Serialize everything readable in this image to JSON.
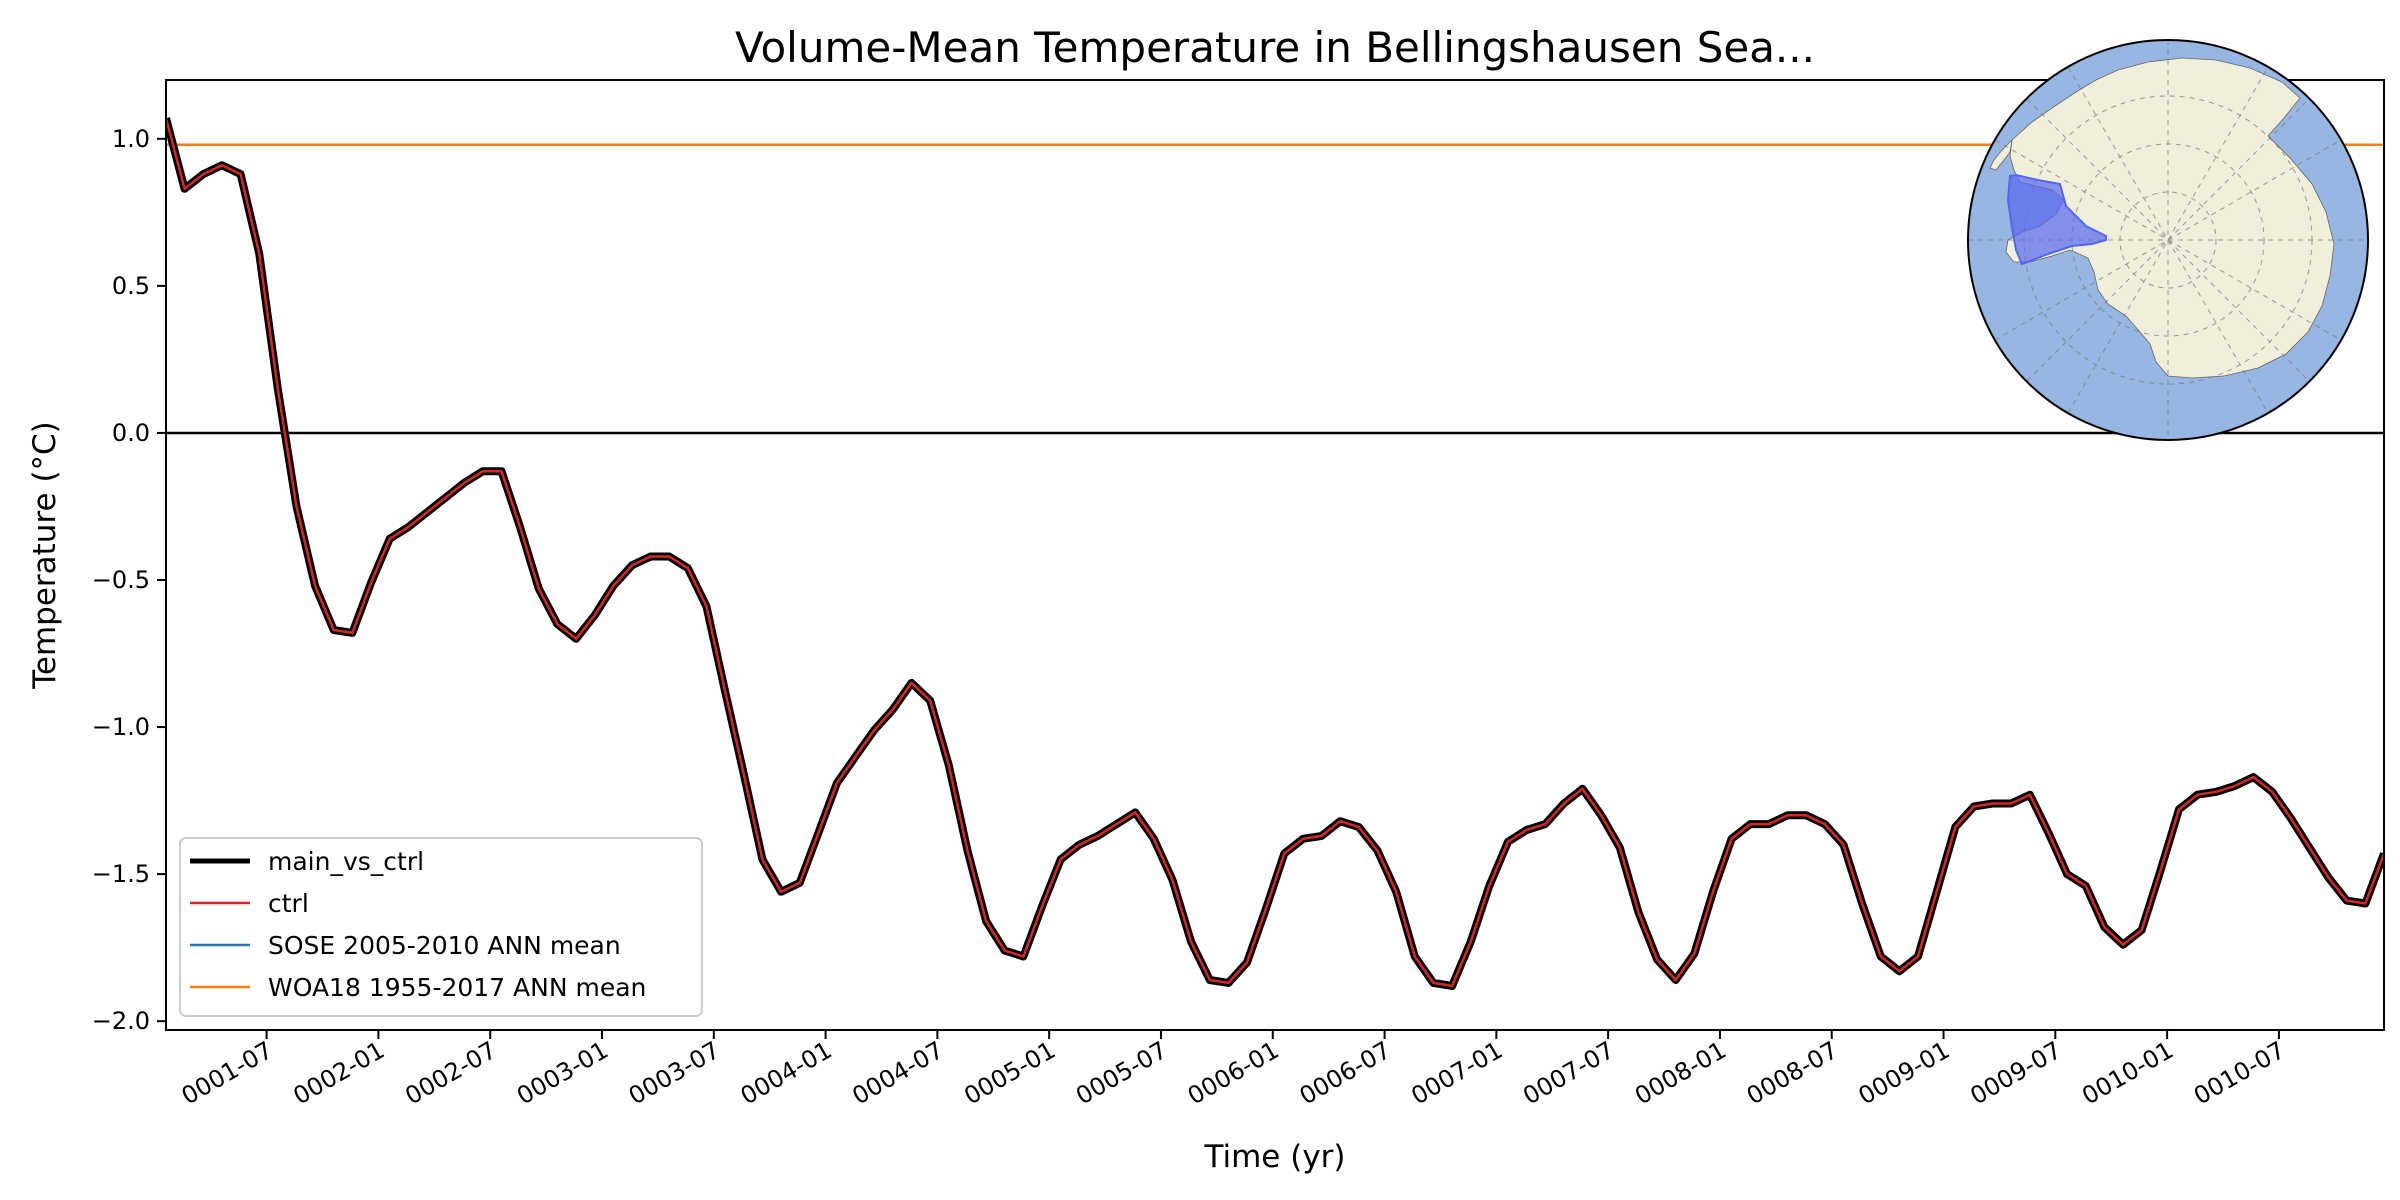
{
  "chart_data": {
    "type": "line",
    "title": "Volume-Mean Temperature in Bellingshausen Sea...",
    "xlabel": "Time (yr)",
    "ylabel": "Temperature (°C)",
    "ylim": [
      -2.03,
      1.2
    ],
    "xlim": [
      0.0,
      9.92
    ],
    "x_ticks": [
      "0001-07",
      "0002-01",
      "0002-07",
      "0003-01",
      "0003-07",
      "0004-01",
      "0004-07",
      "0005-01",
      "0005-07",
      "0006-01",
      "0006-07",
      "0007-01",
      "0007-07",
      "0008-01",
      "0008-07",
      "0009-01",
      "0009-07",
      "0010-01",
      "0010-07"
    ],
    "x_tick_values": [
      0.45,
      0.95,
      1.45,
      1.95,
      2.45,
      2.95,
      3.45,
      3.95,
      4.45,
      4.95,
      5.45,
      5.95,
      6.45,
      6.95,
      7.45,
      7.95,
      8.45,
      8.95,
      9.45
    ],
    "y_ticks": [
      "−2.0",
      "−1.5",
      "−1.0",
      "−0.5",
      "0.0",
      "0.5",
      "1.0"
    ],
    "y_tick_values": [
      -2.0,
      -1.5,
      -1.0,
      -0.5,
      0.0,
      0.5,
      1.0
    ],
    "zero_line": 0.0,
    "legend_position": "lower left",
    "inset": "south polar stereographic map of Antarctica with Bellingshausen Sea region highlighted",
    "colors": {
      "main": "#000000",
      "ctrl": "#d62728",
      "sose": "#1f77b4",
      "woa": "#ff7f0e",
      "ocean": "#97b6e1",
      "land": "#efefdb",
      "region": "#5566ee"
    },
    "series": [
      {
        "name": "main_vs_ctrl",
        "values": [
          1.07,
          0.83,
          0.88,
          0.91,
          0.88,
          0.61,
          0.15,
          -0.25,
          -0.52,
          -0.67,
          -0.68,
          -0.51,
          -0.36,
          -0.32,
          -0.27,
          -0.22,
          -0.17,
          -0.13,
          -0.13,
          -0.32,
          -0.53,
          -0.65,
          -0.7,
          -0.62,
          -0.52,
          -0.45,
          -0.42,
          -0.42,
          -0.46,
          -0.59,
          -0.88,
          -1.16,
          -1.45,
          -1.56,
          -1.53,
          -1.36,
          -1.19,
          -1.1,
          -1.01,
          -0.94,
          -0.85,
          -0.91,
          -1.13,
          -1.42,
          -1.66,
          -1.76,
          -1.78,
          -1.61,
          -1.45,
          -1.4,
          -1.37,
          -1.33,
          -1.29,
          -1.38,
          -1.52,
          -1.73,
          -1.86,
          -1.87,
          -1.8,
          -1.62,
          -1.43,
          -1.38,
          -1.37,
          -1.32,
          -1.34,
          -1.42,
          -1.56,
          -1.78,
          -1.87,
          -1.88,
          -1.73,
          -1.54,
          -1.39,
          -1.35,
          -1.33,
          -1.26,
          -1.21,
          -1.3,
          -1.41,
          -1.63,
          -1.79,
          -1.86,
          -1.77,
          -1.56,
          -1.38,
          -1.33,
          -1.33,
          -1.3,
          -1.3,
          -1.33,
          -1.4,
          -1.6,
          -1.78,
          -1.83,
          -1.78,
          -1.56,
          -1.34,
          -1.27,
          -1.26,
          -1.26,
          -1.23,
          -1.36,
          -1.5,
          -1.54,
          -1.68,
          -1.74,
          -1.69,
          -1.49,
          -1.28,
          -1.23,
          -1.22,
          -1.2,
          -1.17,
          -1.22,
          -1.31,
          -1.41,
          -1.51,
          -1.59,
          -1.6,
          -1.43
        ]
      },
      {
        "name": "ctrl",
        "same_as": "main_vs_ctrl"
      },
      {
        "name": "SOSE 2005-2010 ANN mean",
        "values": []
      },
      {
        "name": "WOA18 1955-2017 ANN mean",
        "constant": 0.98
      }
    ],
    "legend": [
      "main_vs_ctrl",
      "ctrl",
      "SOSE 2005-2010 ANN mean",
      "WOA18 1955-2017 ANN mean"
    ]
  }
}
